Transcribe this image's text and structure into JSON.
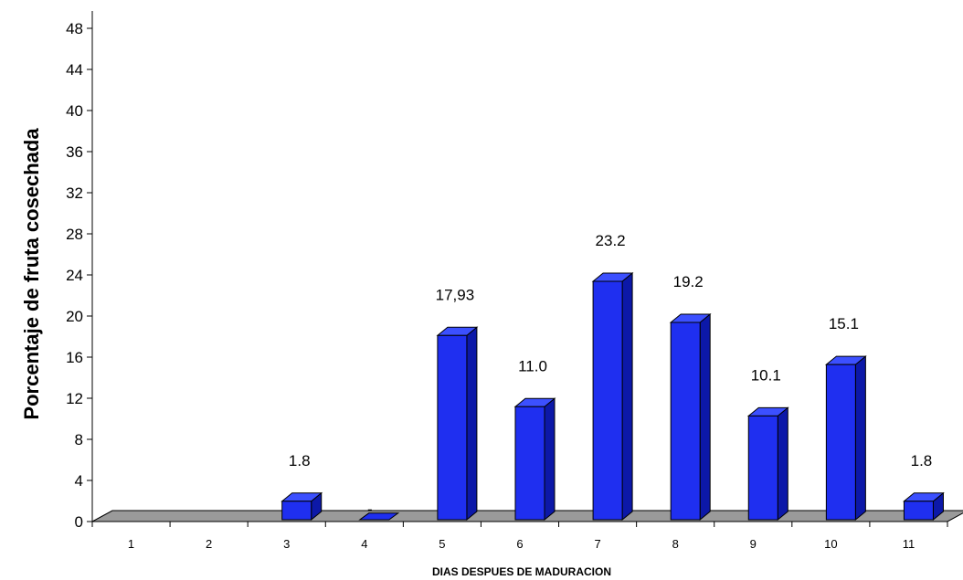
{
  "chart_data": {
    "type": "bar",
    "title": "",
    "xlabel": "DIAS DESPUES DE MADURACION",
    "ylabel": "Porcentaje de fruta cosechada",
    "categories": [
      "1",
      "2",
      "3",
      "4",
      "5",
      "6",
      "7",
      "8",
      "9",
      "10",
      "11"
    ],
    "values": [
      0,
      0,
      1.8,
      0,
      17.93,
      11.0,
      23.2,
      19.2,
      10.1,
      15.1,
      1.8
    ],
    "data_labels": [
      "",
      "",
      "1.8",
      "-",
      "17,93",
      "11.0",
      "23.2",
      "19.2",
      "10.1",
      "15.1",
      "1.8"
    ],
    "ylim": [
      0,
      48
    ],
    "yticks": [
      "0",
      "4",
      "8",
      "12",
      "16",
      "20",
      "24",
      "28",
      "32",
      "36",
      "40",
      "44",
      "48"
    ],
    "grid": false,
    "style": "3d",
    "colors": {
      "bar_front": "#1f2ff0",
      "bar_side": "#0c18a8",
      "bar_top": "#3c50ff",
      "floor": "#9a9a9a"
    }
  }
}
